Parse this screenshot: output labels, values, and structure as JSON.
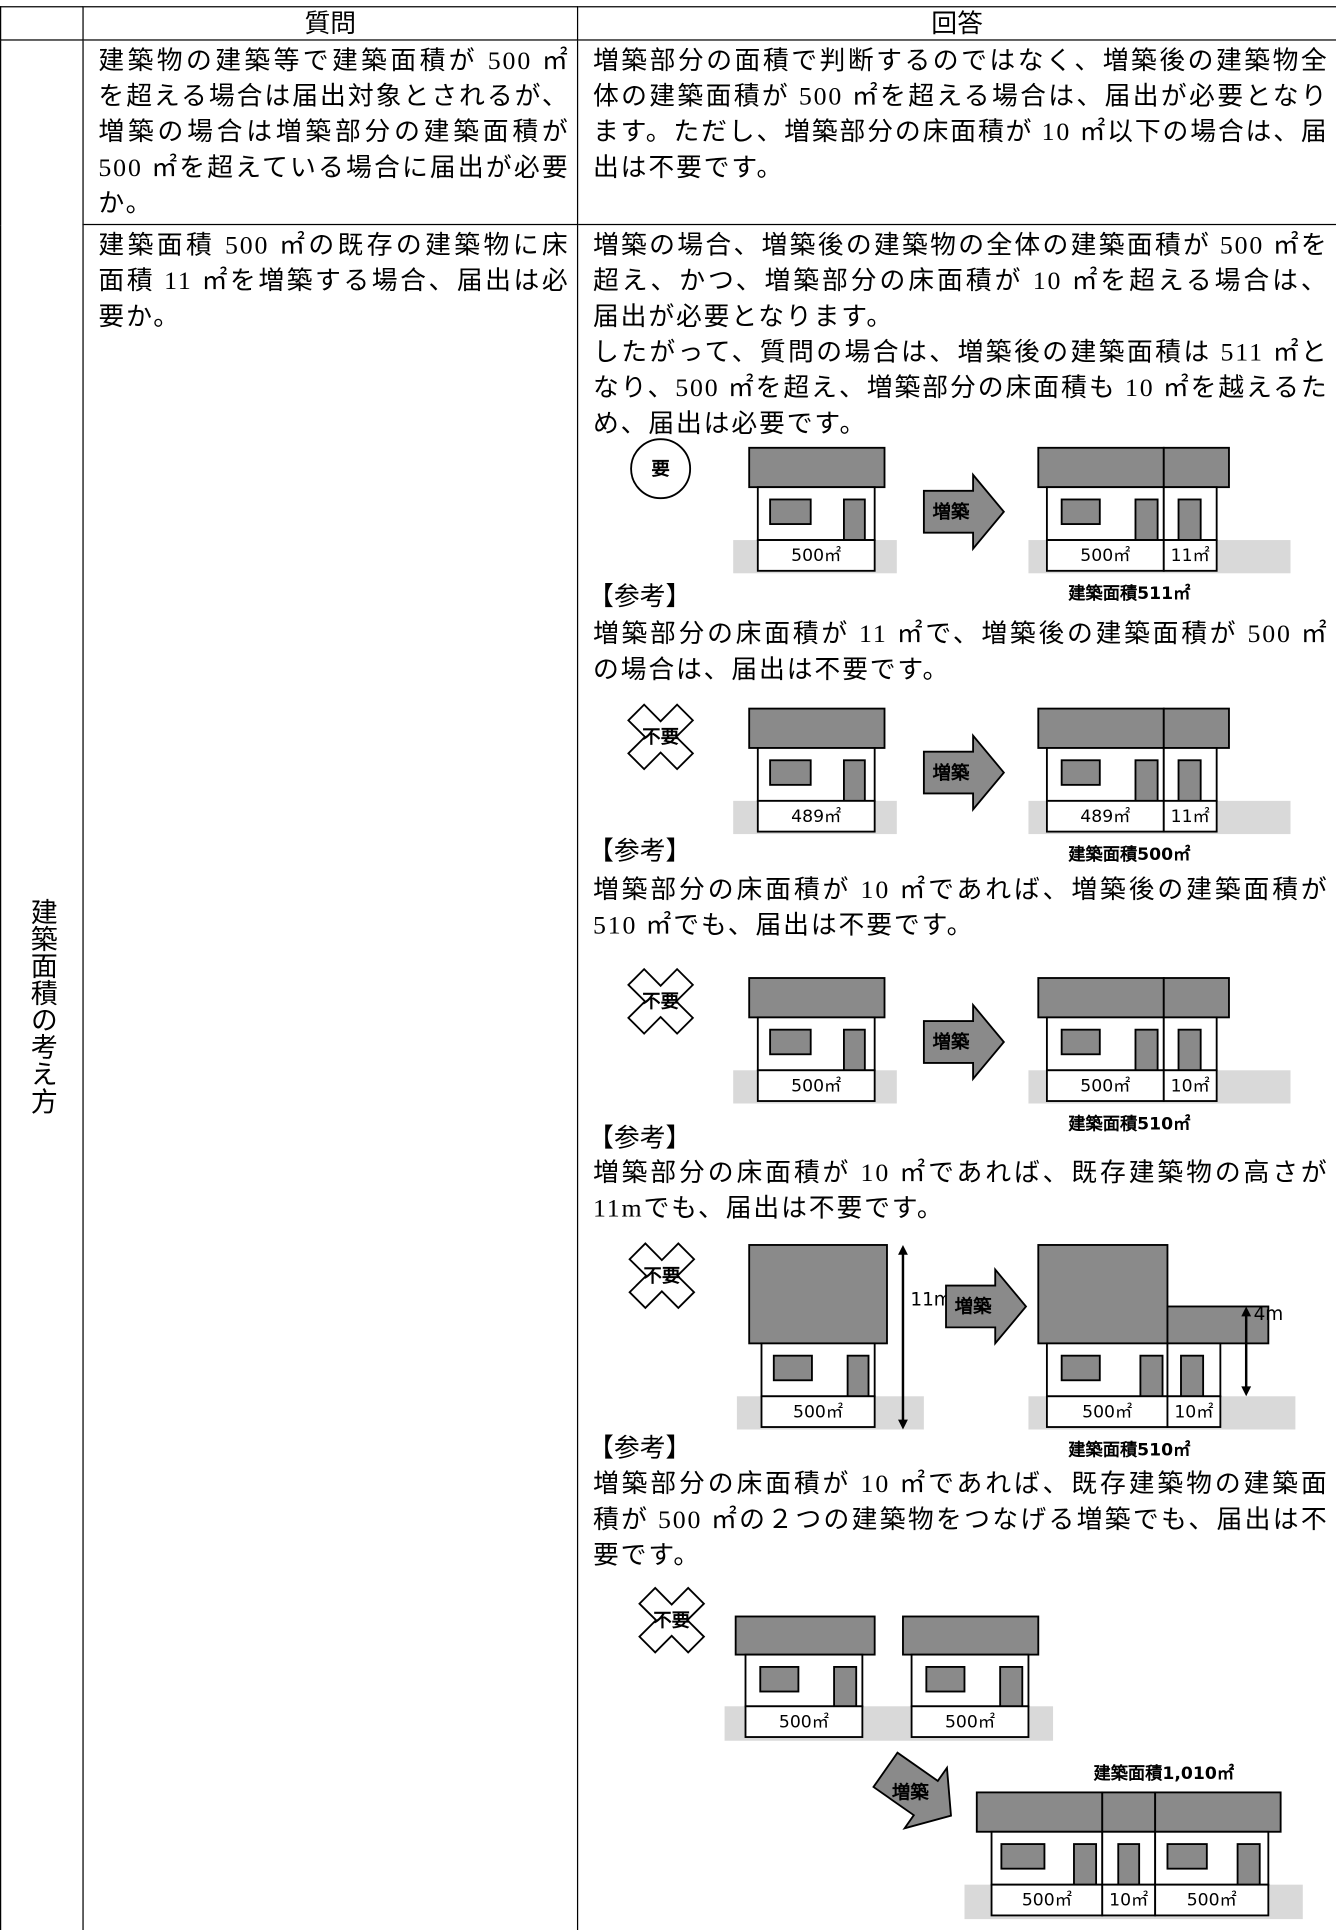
{
  "table": {
    "headers": [
      "質問",
      "回答"
    ],
    "category": "建築面積の考え方",
    "rows": [
      {
        "question": "建築物の建築等で建築面積が 500 ㎡を超える場合は届出対象とされるが、増築の場合は増築部分の建築面積が 500 ㎡を超えている場合に届出が必要か。",
        "answer": [
          "増築部分の面積で判断するのではなく、増築後の建築物全体の建築面積が 500 ㎡を超える場合は、届出が必要となります。ただし、増築部分の床面積が 10 ㎡以下の場合は、届出は不要です。"
        ]
      },
      {
        "question": "建築面積 500 ㎡の既存の建築物に床面積 11 ㎡を増築する場合、届出は必要か。",
        "answer": [
          "増築の場合、増築後の建築物の全体の建築面積が 500 ㎡を超え、かつ、増築部分の床面積が 10 ㎡を超える場合は、届出が必要となります。",
          "したがって、質問の場合は、増築後の建築面積は 511 ㎡となり、500 ㎡を超え、増築部分の床面積も 10 ㎡を越えるため、届出は必要です。"
        ],
        "figures": [
          {
            "badge": "要",
            "arrow": "増築",
            "before": [
              "500㎡"
            ],
            "after": [
              "500㎡",
              "11㎡"
            ],
            "caption": "建築面積511㎡",
            "note_heading": "【参考】",
            "note": "増築部分の床面積が 11 ㎡で、増築後の建築面積が 500 ㎡の場合は、届出は不要です。"
          },
          {
            "badge": "不要",
            "arrow": "増築",
            "before": [
              "489㎡"
            ],
            "after": [
              "489㎡",
              "11㎡"
            ],
            "caption": "建築面積500㎡",
            "note_heading": "【参考】",
            "note": "増築部分の床面積が 10 ㎡であれば、増築後の建築面積が 510 ㎡でも、届出は不要です。"
          },
          {
            "badge": "不要",
            "arrow": "増築",
            "before": [
              "500㎡"
            ],
            "after": [
              "500㎡",
              "10㎡"
            ],
            "caption": "建築面積510㎡",
            "note_heading": "【参考】",
            "note": "増築部分の床面積が 10 ㎡であれば、既存建築物の高さが 11mでも、届出は不要です。"
          },
          {
            "badge": "不要",
            "arrow": "増築",
            "before": [
              "500㎡"
            ],
            "after": [
              "500㎡",
              "10㎡"
            ],
            "heights": [
              "11m",
              "4m"
            ],
            "caption": "建築面積510㎡",
            "note_heading": "【参考】",
            "note": "増築部分の床面積が 10 ㎡であれば、既存建築物の建築面積が 500 ㎡の２つの建築物をつなげる増築でも、届出は不要です。"
          },
          {
            "badge": "不要",
            "arrow": "増築",
            "before": [
              "500㎡",
              "500㎡"
            ],
            "after": [
              "500㎡",
              "10㎡",
              "500㎡"
            ],
            "caption": "建築面積1,010㎡"
          }
        ]
      }
    ]
  }
}
